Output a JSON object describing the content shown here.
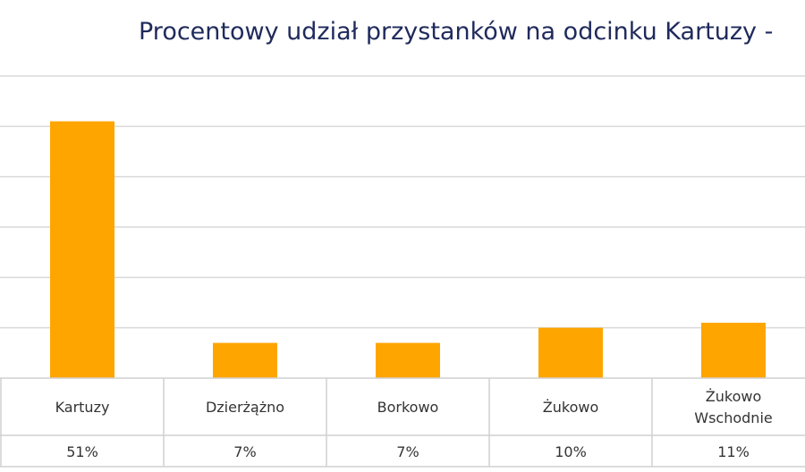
{
  "chart_data": {
    "type": "bar",
    "title": "Procentowy udział przystanków na odcinku Kartuzy -",
    "categories": [
      "Kartuzy",
      "Dzierżążno",
      "Borkowo",
      "Żukowo",
      "Żukowo Wschodnie"
    ],
    "category_lines": [
      [
        "Kartuzy"
      ],
      [
        "Dzierżążno"
      ],
      [
        "Borkowo"
      ],
      [
        "Żukowo"
      ],
      [
        "Żukowo",
        "Wschodnie"
      ]
    ],
    "values": [
      51,
      7,
      7,
      10,
      11
    ],
    "value_labels": [
      "51%",
      "7%",
      "7%",
      "10%",
      "11%"
    ],
    "ylim": [
      0,
      60
    ],
    "grid": true,
    "legend": "none",
    "bar_color": "#FFA500",
    "title_color": "#1f2a5c"
  }
}
